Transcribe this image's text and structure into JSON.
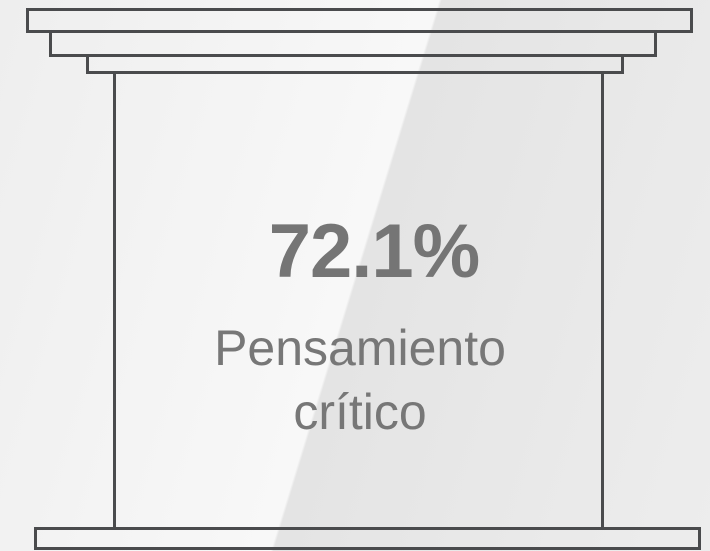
{
  "stat": {
    "value": "72.1%",
    "label": "Pensamiento crítico"
  }
}
